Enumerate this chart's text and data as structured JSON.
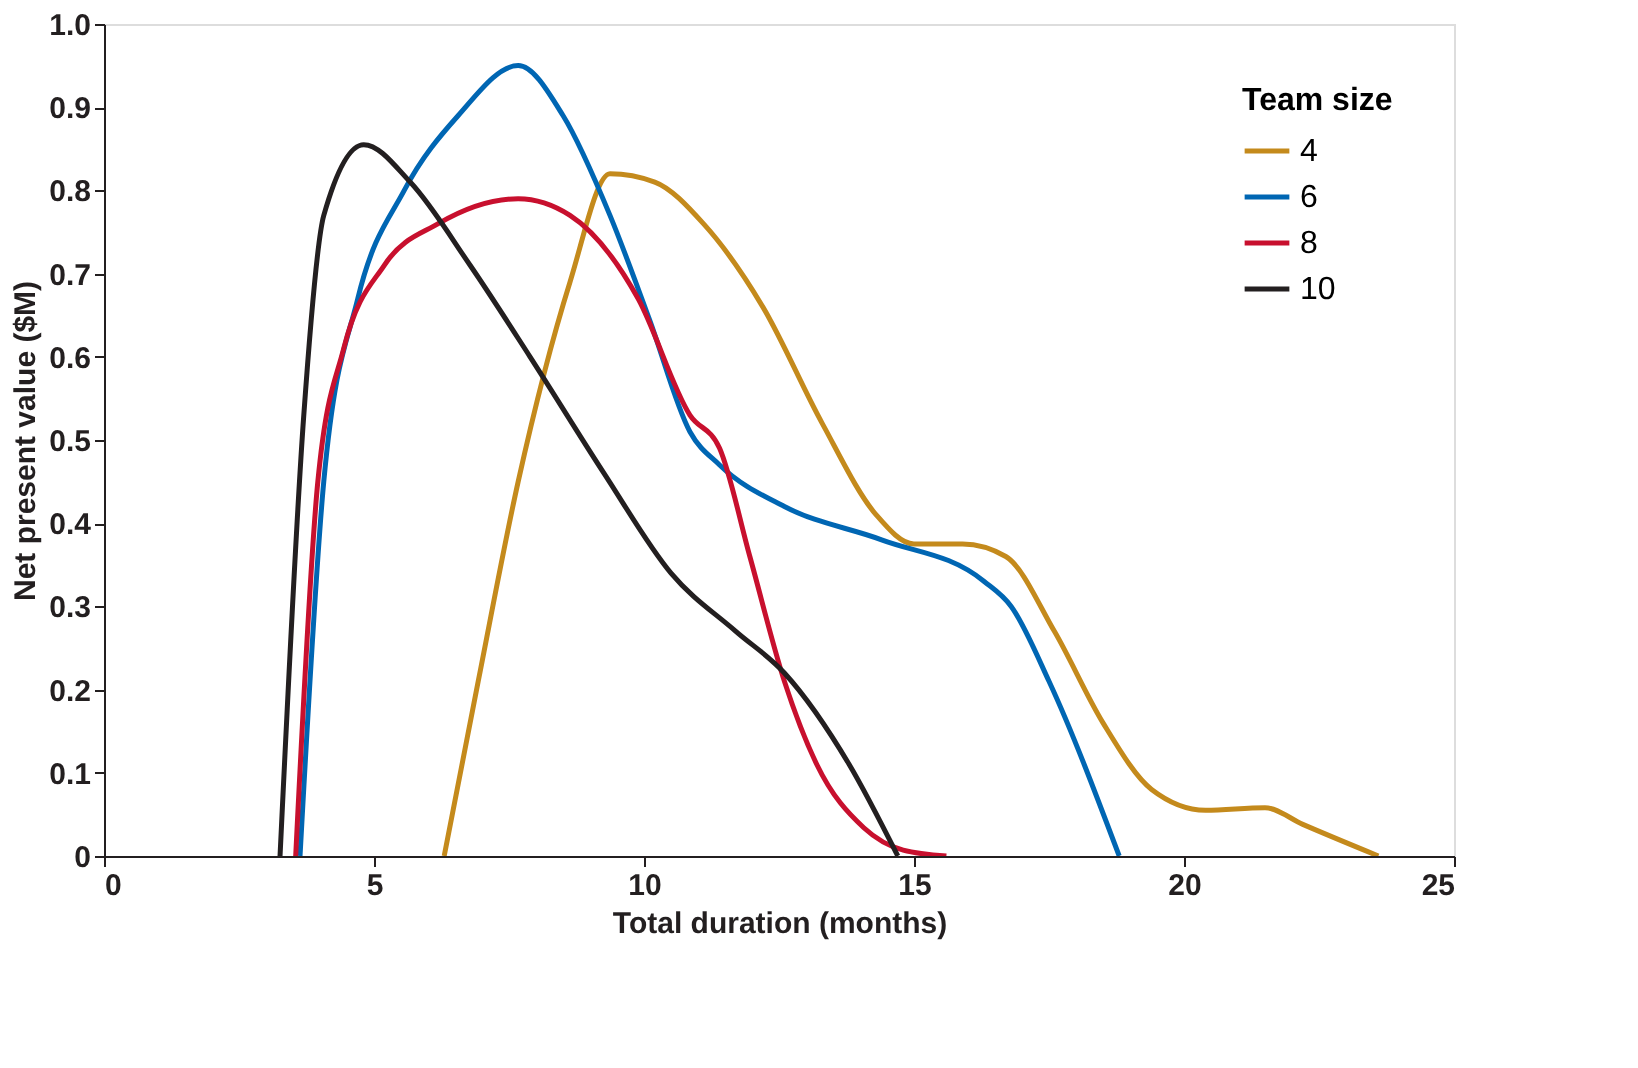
{
  "chart_data": {
    "type": "line",
    "xlabel": "Total duration (months)",
    "ylabel": "Net present value ($M)",
    "legend_title": "Team size",
    "legend": "top right",
    "grid": false,
    "line_style": "solid",
    "marker": "none",
    "xlim": [
      0,
      25
    ],
    "xticks": [
      0,
      5,
      10,
      15,
      20,
      25
    ],
    "ylim": [
      0,
      1
    ],
    "yticks": [
      0,
      {
        "value": 0.1,
        "label": "0.1"
      },
      {
        "value": 0.2,
        "label": "0.2"
      },
      {
        "value": 0.3,
        "label": "0.3"
      },
      {
        "value": 0.4,
        "label": "0.4"
      },
      {
        "value": 0.5,
        "label": "0.5"
      },
      {
        "value": 0.6,
        "label": "0.6"
      },
      {
        "value": 0.7,
        "label": "0.7"
      },
      {
        "value": 0.8,
        "label": "0.8"
      },
      {
        "value": 0.9,
        "label": "0.9"
      },
      {
        "value": 1,
        "label": "1.0"
      }
    ],
    "series": [
      {
        "name": "4",
        "color": "#c48a1c",
        "x": [
          6.3,
          6.93,
          7.67,
          8.63,
          9.37,
          10.2,
          11.1,
          12.2,
          13.3,
          14.3,
          15.0,
          15.9,
          16.7,
          17.6,
          18.5,
          19.4,
          20.4,
          21.5,
          22.2,
          23.6
        ],
        "values": [
          0,
          0.21,
          0.45,
          0.69,
          0.82,
          0.81,
          0.76,
          0.66,
          0.52,
          0.41,
          0.375,
          0.375,
          0.36,
          0.27,
          0.16,
          0.08,
          0.055,
          0.058,
          0.038,
          0
        ]
      },
      {
        "name": "6",
        "color": "#0066b3",
        "x": [
          3.63,
          4.07,
          4.7,
          5.56,
          6.56,
          7.67,
          8.5,
          9.37,
          10.1,
          10.85,
          11.4,
          12.6,
          14.4,
          16.3,
          16.8,
          17.5,
          18.8
        ],
        "values": [
          0,
          0.45,
          0.67,
          0.8,
          0.89,
          0.95,
          0.89,
          0.77,
          0.645,
          0.51,
          0.47,
          0.42,
          0.38,
          0.33,
          0.3,
          0.21,
          0
        ]
      },
      {
        "name": "8",
        "color": "#c8102e",
        "x": [
          3.55,
          3.96,
          4.44,
          5.19,
          6.19,
          7.67,
          8.63,
          9.89,
          10.85,
          11.4,
          11.96,
          12.6,
          13.2,
          14.07,
          14.8,
          15.6
        ],
        "values": [
          0,
          0.45,
          0.61,
          0.71,
          0.76,
          0.79,
          0.77,
          0.67,
          0.53,
          0.49,
          0.36,
          0.21,
          0.11,
          0.034,
          0.007,
          0
        ]
      },
      {
        "name": "10",
        "color": "#231f20",
        "x": [
          3.26,
          3.7,
          4.07,
          4.81,
          5.67,
          6.78,
          7.89,
          9.26,
          10.5,
          11.7,
          12.6,
          13.8,
          14.7
        ],
        "values": [
          0,
          0.53,
          0.77,
          0.855,
          0.81,
          0.71,
          0.6,
          0.46,
          0.34,
          0.27,
          0.22,
          0.11,
          0
        ]
      }
    ]
  }
}
